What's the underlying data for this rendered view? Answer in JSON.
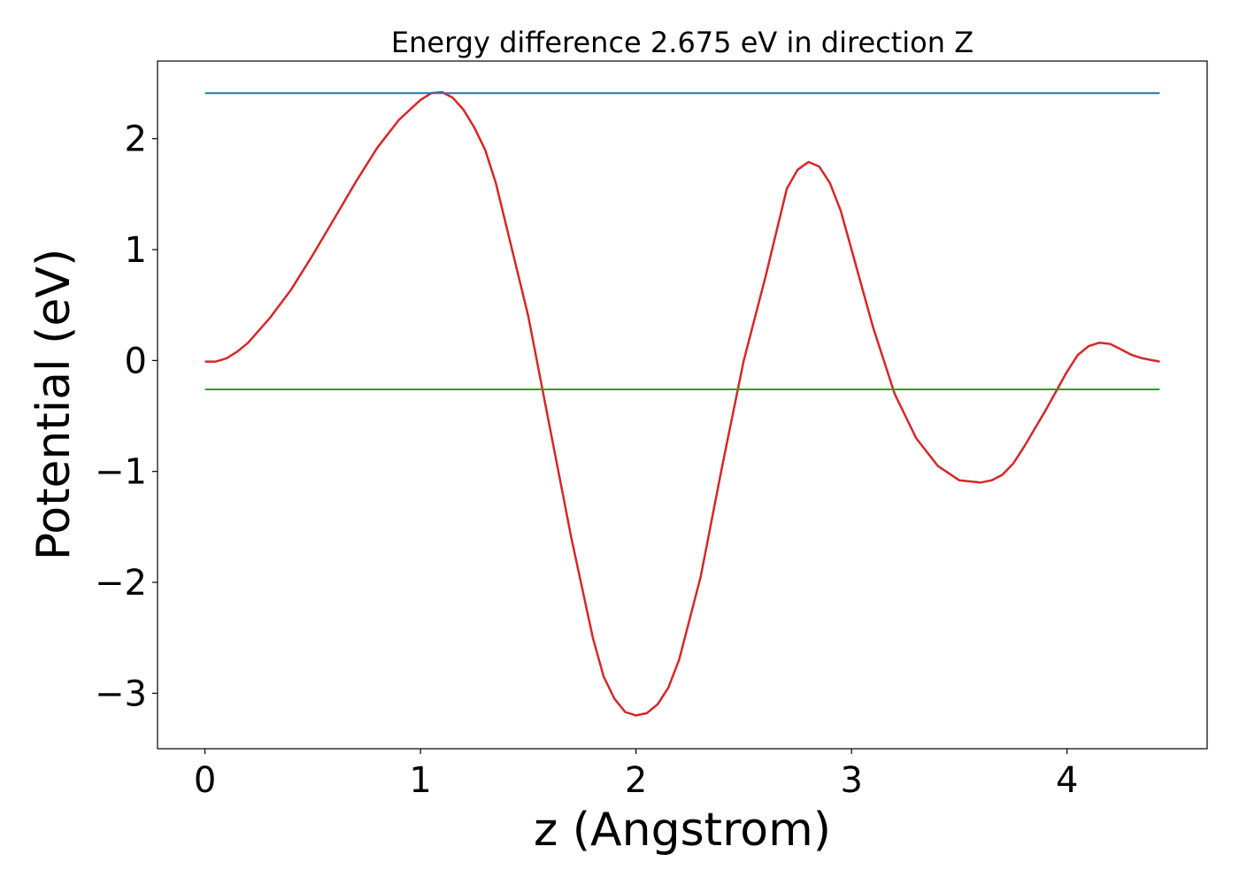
{
  "chart_data": {
    "type": "line",
    "title": "Energy difference 2.675 eV in direction Z",
    "xlabel": "z (Angstrom)",
    "ylabel": "Potential (eV)",
    "xlim": [
      -0.22,
      4.65
    ],
    "ylim": [
      -3.5,
      2.7
    ],
    "xticks": [
      0,
      1,
      2,
      3,
      4
    ],
    "xtick_labels": [
      "0",
      "1",
      "2",
      "3",
      "4"
    ],
    "yticks": [
      2,
      1,
      0,
      -1,
      -2,
      -3
    ],
    "ytick_labels": [
      "2",
      "1",
      "0",
      "−1",
      "−2",
      "−3"
    ],
    "grid": false,
    "series": [
      {
        "color": "#d62728",
        "x": [
          0,
          0.05,
          0.1,
          0.15,
          0.2,
          0.3,
          0.4,
          0.5,
          0.6,
          0.7,
          0.8,
          0.9,
          1.0,
          1.05,
          1.1,
          1.15,
          1.2,
          1.25,
          1.3,
          1.35,
          1.4,
          1.5,
          1.6,
          1.7,
          1.8,
          1.85,
          1.9,
          1.95,
          2.0,
          2.05,
          2.1,
          2.15,
          2.2,
          2.3,
          2.4,
          2.5,
          2.6,
          2.7,
          2.75,
          2.8,
          2.85,
          2.9,
          2.95,
          3.0,
          3.1,
          3.2,
          3.3,
          3.4,
          3.5,
          3.6,
          3.65,
          3.7,
          3.75,
          3.8,
          3.9,
          4.0,
          4.05,
          4.1,
          4.15,
          4.2,
          4.25,
          4.3,
          4.35,
          4.43
        ],
        "y": [
          -0.01,
          -0.01,
          0.02,
          0.08,
          0.16,
          0.38,
          0.64,
          0.95,
          1.28,
          1.61,
          1.92,
          2.17,
          2.35,
          2.41,
          2.42,
          2.37,
          2.26,
          2.1,
          1.9,
          1.6,
          1.2,
          0.4,
          -0.6,
          -1.6,
          -2.5,
          -2.85,
          -3.05,
          -3.17,
          -3.2,
          -3.18,
          -3.1,
          -2.95,
          -2.7,
          -1.95,
          -0.95,
          0.0,
          0.75,
          1.55,
          1.72,
          1.79,
          1.75,
          1.6,
          1.35,
          1.0,
          0.3,
          -0.3,
          -0.7,
          -0.95,
          -1.08,
          -1.1,
          -1.08,
          -1.03,
          -0.93,
          -0.78,
          -0.45,
          -0.1,
          0.05,
          0.13,
          0.16,
          0.15,
          0.1,
          0.05,
          0.02,
          -0.01
        ]
      },
      {
        "color": "#1f77b4",
        "x": [
          0,
          4.43
        ],
        "y": [
          2.41,
          2.41
        ]
      },
      {
        "color": "#2ca02c",
        "x": [
          0,
          4.43
        ],
        "y": [
          -0.26,
          -0.26
        ]
      }
    ]
  }
}
